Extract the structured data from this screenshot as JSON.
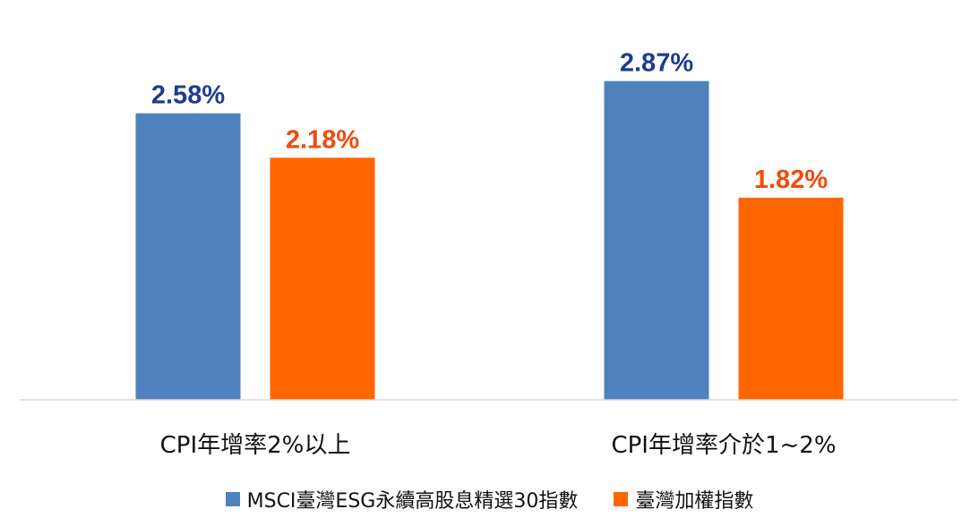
{
  "chart_data": {
    "type": "bar",
    "categories": [
      "CPI年增率2%以上",
      "CPI年增率介於1~2%"
    ],
    "series": [
      {
        "name": "MSCI臺灣ESG永續高股息精選30指數",
        "values": [
          2.58,
          2.87
        ],
        "labels": [
          "2.58%",
          "2.87%"
        ],
        "color": "#4F81BD",
        "label_color": "#1F3C8F"
      },
      {
        "name": "臺灣加權指數",
        "values": [
          2.18,
          1.82
        ],
        "labels": [
          "2.18%",
          "1.82%"
        ],
        "color": "#FF6600",
        "label_color": "#F24A0C"
      }
    ],
    "ylim": [
      0,
      3.6
    ],
    "grid": false,
    "legend_position": "bottom",
    "axis_color": "#D9D9D9"
  }
}
